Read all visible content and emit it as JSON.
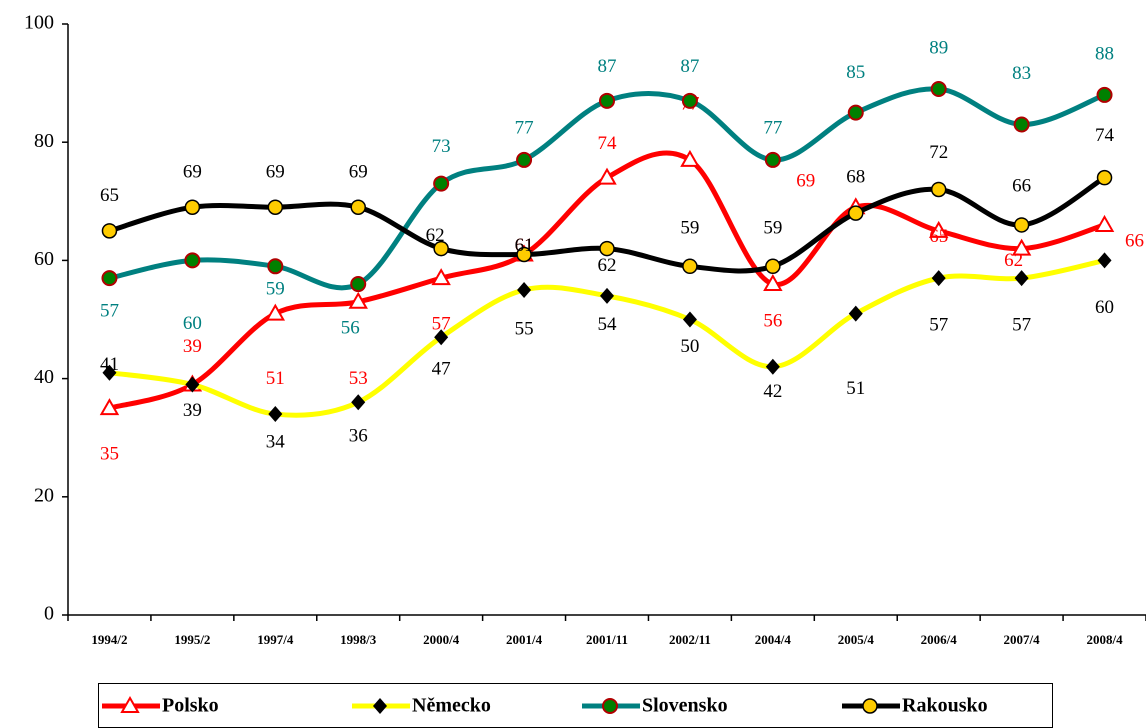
{
  "chart_data": {
    "type": "line",
    "categories": [
      "1994/2",
      "1995/2",
      "1997/4",
      "1998/3",
      "2000/4",
      "2001/4",
      "2001/11",
      "2002/11",
      "2004/4",
      "2005/4",
      "2006/4",
      "2007/4",
      "2008/4"
    ],
    "series": [
      {
        "name": "Polsko",
        "color": "#ff0000",
        "values": [
          35,
          39,
          51,
          53,
          57,
          61,
          74,
          77,
          56,
          69,
          65,
          62,
          66
        ]
      },
      {
        "name": "Německo",
        "color": "#ffff00",
        "values": [
          41,
          39,
          34,
          36,
          47,
          55,
          54,
          50,
          42,
          51,
          57,
          57,
          60
        ]
      },
      {
        "name": "Slovensko",
        "color": "#008080",
        "values": [
          57,
          60,
          59,
          56,
          73,
          77,
          87,
          87,
          77,
          85,
          89,
          83,
          88
        ]
      },
      {
        "name": "Rakousko",
        "color": "#000000",
        "values": [
          65,
          69,
          69,
          69,
          62,
          61,
          62,
          59,
          59,
          68,
          72,
          66,
          74
        ]
      }
    ],
    "ylim": [
      0,
      100
    ],
    "yticks": [
      0,
      20,
      40,
      60,
      80,
      100
    ],
    "grid": false,
    "legend": "bottom"
  }
}
